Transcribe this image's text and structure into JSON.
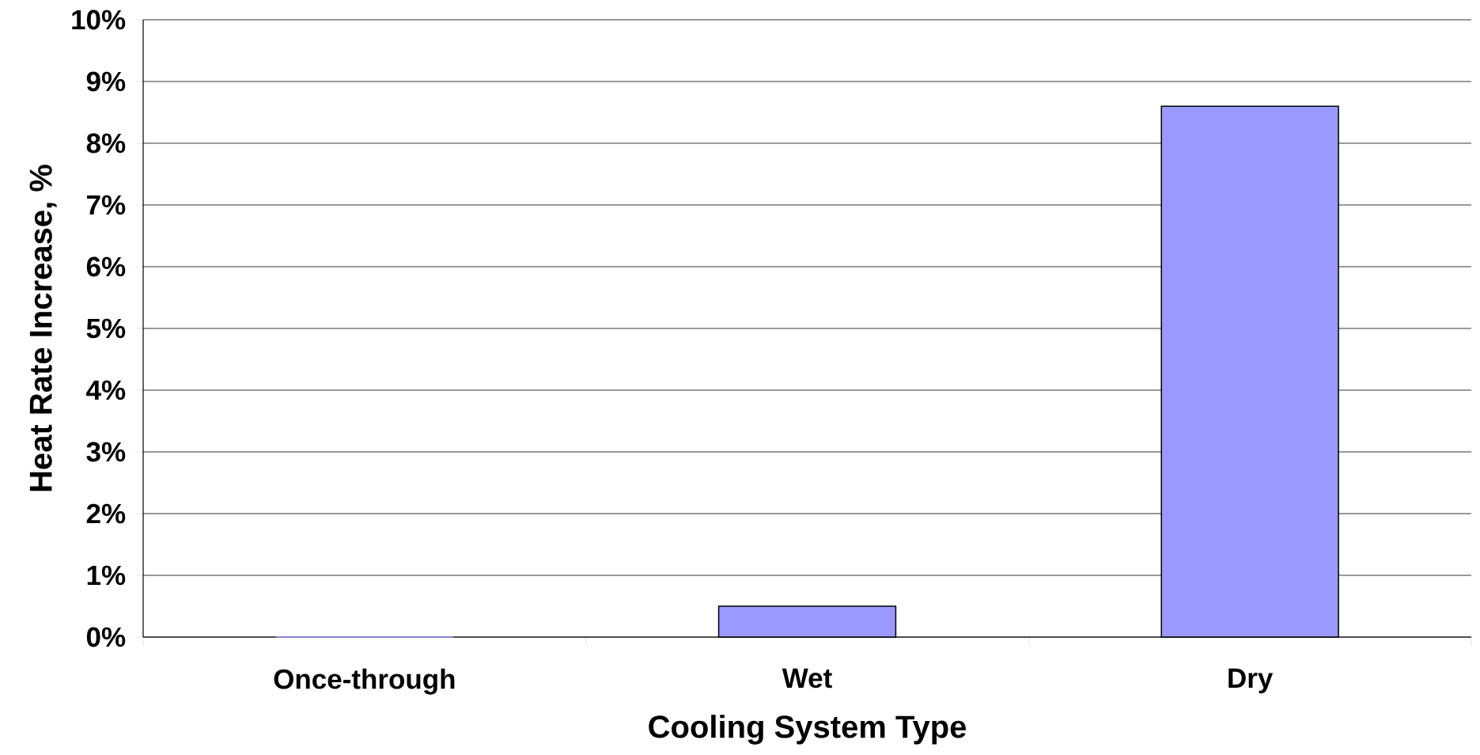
{
  "chart_data": {
    "type": "bar",
    "xlabel": "Cooling System Type",
    "ylabel": "Heat Rate Increase, %",
    "categories": [
      "Once-through",
      "Wet",
      "Dry"
    ],
    "values": [
      0,
      0.5,
      8.6
    ],
    "color": "#9999ff",
    "ylim": [
      0,
      10
    ],
    "yticks": [
      {
        "value": 0,
        "label": "0%"
      },
      {
        "value": 1,
        "label": "1%"
      },
      {
        "value": 2,
        "label": "2%"
      },
      {
        "value": 3,
        "label": "3%"
      },
      {
        "value": 4,
        "label": "4%"
      },
      {
        "value": 5,
        "label": "5%"
      },
      {
        "value": 6,
        "label": "6%"
      },
      {
        "value": 7,
        "label": "7%"
      },
      {
        "value": 8,
        "label": "8%"
      },
      {
        "value": 9,
        "label": "9%"
      },
      {
        "value": 10,
        "label": "10%"
      }
    ],
    "grid": "y"
  }
}
